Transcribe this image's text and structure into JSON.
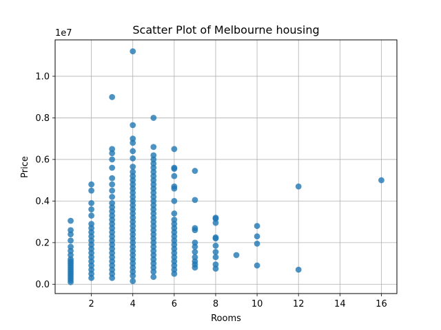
{
  "chart_data": {
    "type": "scatter",
    "title": "Scatter Plot of Melbourne housing",
    "xlabel": "Rooms",
    "ylabel": "Price",
    "y_offset_label": "1e7",
    "xlim": [
      0.25,
      16.75
    ],
    "ylim": [
      -0.45,
      11.75
    ],
    "y_units": "1e6 (displayed with 1e7 offset)",
    "x_ticks": [
      2,
      4,
      6,
      8,
      10,
      12,
      14,
      16
    ],
    "x_tick_labels": [
      "2",
      "4",
      "6",
      "8",
      "10",
      "12",
      "14",
      "16"
    ],
    "y_ticks": [
      0,
      2,
      4,
      6,
      8,
      10
    ],
    "y_tick_labels": [
      "0.0",
      "0.2",
      "0.4",
      "0.6",
      "0.8",
      "1.0"
    ],
    "grid": true,
    "marker_color": "#1f77b4",
    "series": [
      {
        "points": [
          [
            1,
            0.1
          ],
          [
            1,
            0.2
          ],
          [
            1,
            0.3
          ],
          [
            1,
            0.4
          ],
          [
            1,
            0.5
          ],
          [
            1,
            0.6
          ],
          [
            1,
            0.7
          ],
          [
            1,
            0.8
          ],
          [
            1,
            0.9
          ],
          [
            1,
            1.0
          ],
          [
            1,
            1.1
          ],
          [
            1,
            1.2
          ],
          [
            1,
            1.4
          ],
          [
            1,
            1.6
          ],
          [
            1,
            1.8
          ],
          [
            1,
            2.1
          ],
          [
            1,
            2.4
          ],
          [
            1,
            2.6
          ],
          [
            1,
            3.05
          ],
          [
            2,
            0.3
          ],
          [
            2,
            0.5
          ],
          [
            2,
            0.7
          ],
          [
            2,
            0.9
          ],
          [
            2,
            1.1
          ],
          [
            2,
            1.3
          ],
          [
            2,
            1.5
          ],
          [
            2,
            1.7
          ],
          [
            2,
            1.9
          ],
          [
            2,
            2.1
          ],
          [
            2,
            2.3
          ],
          [
            2,
            2.5
          ],
          [
            2,
            2.7
          ],
          [
            2,
            2.9
          ],
          [
            2,
            3.3
          ],
          [
            2,
            3.6
          ],
          [
            2,
            3.9
          ],
          [
            2,
            4.5
          ],
          [
            2,
            4.8
          ],
          [
            3,
            0.3
          ],
          [
            3,
            0.5
          ],
          [
            3,
            0.7
          ],
          [
            3,
            0.9
          ],
          [
            3,
            1.1
          ],
          [
            3,
            1.3
          ],
          [
            3,
            1.5
          ],
          [
            3,
            1.7
          ],
          [
            3,
            1.9
          ],
          [
            3,
            2.1
          ],
          [
            3,
            2.3
          ],
          [
            3,
            2.5
          ],
          [
            3,
            2.7
          ],
          [
            3,
            2.9
          ],
          [
            3,
            3.1
          ],
          [
            3,
            3.3
          ],
          [
            3,
            3.5
          ],
          [
            3,
            3.7
          ],
          [
            3,
            3.9
          ],
          [
            3,
            4.2
          ],
          [
            3,
            4.5
          ],
          [
            3,
            4.8
          ],
          [
            3,
            5.1
          ],
          [
            3,
            5.6
          ],
          [
            3,
            6.0
          ],
          [
            3,
            6.3
          ],
          [
            3,
            6.5
          ],
          [
            3,
            9.0
          ],
          [
            4,
            0.15
          ],
          [
            4,
            0.4
          ],
          [
            4,
            0.6
          ],
          [
            4,
            0.8
          ],
          [
            4,
            1.0
          ],
          [
            4,
            1.2
          ],
          [
            4,
            1.4
          ],
          [
            4,
            1.6
          ],
          [
            4,
            1.8
          ],
          [
            4,
            2.0
          ],
          [
            4,
            2.2
          ],
          [
            4,
            2.4
          ],
          [
            4,
            2.6
          ],
          [
            4,
            2.8
          ],
          [
            4,
            3.0
          ],
          [
            4,
            3.2
          ],
          [
            4,
            3.4
          ],
          [
            4,
            3.6
          ],
          [
            4,
            3.8
          ],
          [
            4,
            4.0
          ],
          [
            4,
            4.2
          ],
          [
            4,
            4.4
          ],
          [
            4,
            4.6
          ],
          [
            4,
            4.8
          ],
          [
            4,
            5.0
          ],
          [
            4,
            5.2
          ],
          [
            4,
            5.4
          ],
          [
            4,
            5.65
          ],
          [
            4,
            6.05
          ],
          [
            4,
            6.4
          ],
          [
            4,
            6.8
          ],
          [
            4,
            7.0
          ],
          [
            4,
            7.65
          ],
          [
            4,
            11.2
          ],
          [
            5,
            0.35
          ],
          [
            5,
            0.6
          ],
          [
            5,
            0.8
          ],
          [
            5,
            1.0
          ],
          [
            5,
            1.2
          ],
          [
            5,
            1.4
          ],
          [
            5,
            1.6
          ],
          [
            5,
            1.8
          ],
          [
            5,
            2.0
          ],
          [
            5,
            2.2
          ],
          [
            5,
            2.4
          ],
          [
            5,
            2.6
          ],
          [
            5,
            2.8
          ],
          [
            5,
            3.0
          ],
          [
            5,
            3.2
          ],
          [
            5,
            3.4
          ],
          [
            5,
            3.6
          ],
          [
            5,
            3.8
          ],
          [
            5,
            4.0
          ],
          [
            5,
            4.2
          ],
          [
            5,
            4.4
          ],
          [
            5,
            4.6
          ],
          [
            5,
            4.8
          ],
          [
            5,
            5.0
          ],
          [
            5,
            5.2
          ],
          [
            5,
            5.4
          ],
          [
            5,
            5.6
          ],
          [
            5,
            5.8
          ],
          [
            5,
            6.0
          ],
          [
            5,
            6.2
          ],
          [
            5,
            6.6
          ],
          [
            5,
            8.0
          ],
          [
            6,
            0.5
          ],
          [
            6,
            0.7
          ],
          [
            6,
            0.9
          ],
          [
            6,
            1.1
          ],
          [
            6,
            1.3
          ],
          [
            6,
            1.5
          ],
          [
            6,
            1.7
          ],
          [
            6,
            1.9
          ],
          [
            6,
            2.1
          ],
          [
            6,
            2.3
          ],
          [
            6,
            2.5
          ],
          [
            6,
            2.7
          ],
          [
            6,
            2.9
          ],
          [
            6,
            3.1
          ],
          [
            6,
            3.4
          ],
          [
            6,
            4.0
          ],
          [
            6,
            4.6
          ],
          [
            6,
            4.7
          ],
          [
            6,
            5.2
          ],
          [
            6,
            5.55
          ],
          [
            6,
            5.6
          ],
          [
            6,
            6.5
          ],
          [
            7,
            0.8
          ],
          [
            7,
            0.95
          ],
          [
            7,
            1.1
          ],
          [
            7,
            1.3
          ],
          [
            7,
            1.55
          ],
          [
            7,
            1.8
          ],
          [
            7,
            2.0
          ],
          [
            7,
            2.6
          ],
          [
            7,
            2.7
          ],
          [
            7,
            4.05
          ],
          [
            7,
            5.45
          ],
          [
            8,
            0.75
          ],
          [
            8,
            0.95
          ],
          [
            8,
            1.3
          ],
          [
            8,
            1.55
          ],
          [
            8,
            1.85
          ],
          [
            8,
            2.2
          ],
          [
            8,
            2.25
          ],
          [
            8,
            2.95
          ],
          [
            8,
            3.15
          ],
          [
            8,
            3.2
          ],
          [
            9,
            1.4
          ],
          [
            10,
            0.9
          ],
          [
            10,
            1.95
          ],
          [
            10,
            2.3
          ],
          [
            10,
            2.8
          ],
          [
            12,
            0.7
          ],
          [
            12,
            4.7
          ],
          [
            16,
            5.0
          ]
        ]
      }
    ]
  }
}
